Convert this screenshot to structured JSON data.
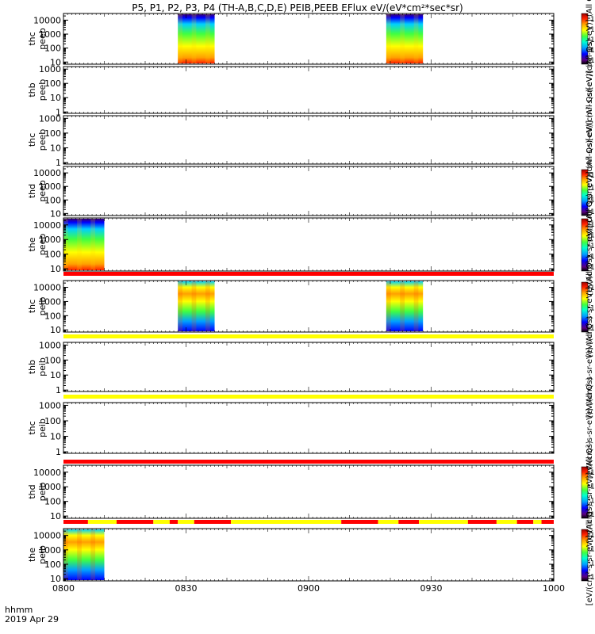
{
  "chart_data": {
    "type": "heatmap",
    "title": "P5, P1, P2, P3, P4 (TH-A,B,C,D,E) PEIB,PEEB EFlux eV/(eV*cm²*sec*sr)",
    "x_axis": {
      "ticks": [
        "0800",
        "0830",
        "0900",
        "0930",
        "1000"
      ],
      "tick_values_min": [
        0,
        30,
        60,
        90,
        120
      ],
      "range_min": [
        0,
        120
      ],
      "label_line1": "hhmm",
      "label_line2": "2019 Apr 29"
    },
    "colorbar_colors": [
      "#000000",
      "#5a0080",
      "#0000ff",
      "#00a0ff",
      "#00ffd0",
      "#40ff40",
      "#ffff00",
      "#ffa000",
      "#ff2000",
      "#a00000"
    ],
    "panels": [
      {
        "id": "thc_peeb",
        "label1": "thc",
        "label2": "peeb",
        "ylog": true,
        "ylim": [
          7,
          30000
        ],
        "yticks": [
          "10",
          "100",
          "1000",
          "10000"
        ],
        "blocks": [
          [
            28,
            37
          ],
          [
            79,
            88
          ]
        ],
        "quality_bar": null,
        "colorbar": {
          "ticks": [
            "10⁷",
            "10⁶",
            "10⁵",
            "10⁴",
            "10³"
          ],
          "label": "[eV/(cm²-s-sr-eV)] (All Qs)"
        }
      },
      {
        "id": "thb_peeb",
        "label1": "thb",
        "label2": "peeb",
        "ylog": true,
        "ylim": [
          0.8,
          1500
        ],
        "yticks": [
          "1",
          "10",
          "100",
          "1000"
        ],
        "blocks": [],
        "quality_bar": null,
        "colorbar": {
          "ticks": [],
          "label": "[eV/(cm²-s-sr-eV)] (All Qs)"
        }
      },
      {
        "id": "thc_peeb_2",
        "label1": "thc",
        "label2": "peeb",
        "ylog": true,
        "ylim": [
          0.8,
          1500
        ],
        "yticks": [
          "1",
          "10",
          "100",
          "1000"
        ],
        "blocks": [],
        "quality_bar": null,
        "colorbar": {
          "ticks": [],
          "label": "[eV/(cm²-s-sr-eV)] (All Qs)"
        }
      },
      {
        "id": "thd_peeb",
        "label1": "thd",
        "label2": "peeb",
        "ylog": true,
        "ylim": [
          7,
          30000
        ],
        "yticks": [
          "10",
          "100",
          "1000",
          "10000"
        ],
        "blocks": [],
        "quality_bar": null,
        "colorbar": {
          "ticks": [
            "10⁷",
            "10⁶",
            "10⁵",
            "10⁴"
          ],
          "label": "[eV/(cm²-s-sr-eV)] (All Qs)"
        }
      },
      {
        "id": "the_peeb",
        "label1": "the",
        "label2": "peeb",
        "ylog": true,
        "ylim": [
          7,
          30000
        ],
        "yticks": [
          "10",
          "100",
          "1000",
          "10000"
        ],
        "blocks": [
          [
            0,
            10
          ]
        ],
        "quality_bar": {
          "segments": [
            [
              0,
              120,
              "red"
            ]
          ]
        },
        "colorbar": {
          "ticks": [
            "10⁸",
            "10⁷",
            "10⁶",
            "10⁵",
            "10⁴"
          ],
          "label": "[eV/(cm²-s-sr-eV)] (All Qs)"
        }
      },
      {
        "id": "thc_peib",
        "label1": "thc",
        "label2": "peib",
        "ylog": true,
        "ylim": [
          7,
          30000
        ],
        "yticks": [
          "10",
          "100",
          "1000",
          "10000"
        ],
        "blocks": [
          [
            28,
            37
          ],
          [
            79,
            88
          ]
        ],
        "quality_bar": {
          "segments": [
            [
              0,
              120,
              "yellow"
            ]
          ]
        },
        "colorbar": {
          "ticks": [
            "10⁵",
            "10⁴",
            "10³"
          ],
          "label": "[eV/(cm²-s-sr-eV)] (All Qs)"
        }
      },
      {
        "id": "thb_peib",
        "label1": "thb",
        "label2": "peib",
        "ylog": true,
        "ylim": [
          0.8,
          1500
        ],
        "yticks": [
          "1",
          "10",
          "100",
          "1000"
        ],
        "blocks": [],
        "quality_bar": {
          "segments": [
            [
              0,
              120,
              "yellow"
            ]
          ]
        },
        "colorbar": {
          "ticks": [],
          "label": "[eV/(cm²-s-sr-eV)] (All Qs)"
        }
      },
      {
        "id": "thc_peib_2",
        "label1": "thc",
        "label2": "peib",
        "ylog": true,
        "ylim": [
          0.8,
          1500
        ],
        "yticks": [
          "1",
          "10",
          "100",
          "1000"
        ],
        "blocks": [],
        "quality_bar": {
          "segments": [
            [
              0,
              120,
              "red"
            ]
          ]
        },
        "colorbar": {
          "ticks": [],
          "label": "[eV/(cm²-s-sr-eV)] (All Qs)"
        }
      },
      {
        "id": "thd_peib",
        "label1": "thd",
        "label2": "peib",
        "ylog": true,
        "ylim": [
          7,
          30000
        ],
        "yticks": [
          "10",
          "100",
          "1000",
          "10000"
        ],
        "blocks": [],
        "quality_bar": {
          "segments": [
            [
              0,
              6,
              "red"
            ],
            [
              6,
              13,
              "yellow"
            ],
            [
              13,
              22,
              "red"
            ],
            [
              22,
              26,
              "yellow"
            ],
            [
              26,
              28,
              "red"
            ],
            [
              28,
              32,
              "yellow"
            ],
            [
              32,
              41,
              "red"
            ],
            [
              41,
              68,
              "yellow"
            ],
            [
              68,
              77,
              "red"
            ],
            [
              77,
              82,
              "yellow"
            ],
            [
              82,
              87,
              "red"
            ],
            [
              87,
              99,
              "yellow"
            ],
            [
              99,
              106,
              "red"
            ],
            [
              106,
              111,
              "yellow"
            ],
            [
              111,
              115,
              "red"
            ],
            [
              115,
              117,
              "yellow"
            ],
            [
              117,
              120,
              "red"
            ]
          ]
        },
        "colorbar": {
          "ticks": [
            "10⁶",
            "10⁵",
            "10⁴",
            "10³"
          ],
          "label": "[eV/(cm²-s-sr-eV)] (All Qs)"
        }
      },
      {
        "id": "the_peib",
        "label1": "the",
        "label2": "peib",
        "ylog": true,
        "ylim": [
          7,
          30000
        ],
        "yticks": [
          "10",
          "100",
          "1000",
          "10000"
        ],
        "blocks": [
          [
            0,
            10
          ]
        ],
        "quality_bar": null,
        "colorbar": {
          "ticks": [
            "10⁶",
            "10⁵",
            "10⁴",
            "10³"
          ],
          "label": "[eV/(cm²-s-sr-eV)] (All Qs)"
        }
      }
    ]
  }
}
